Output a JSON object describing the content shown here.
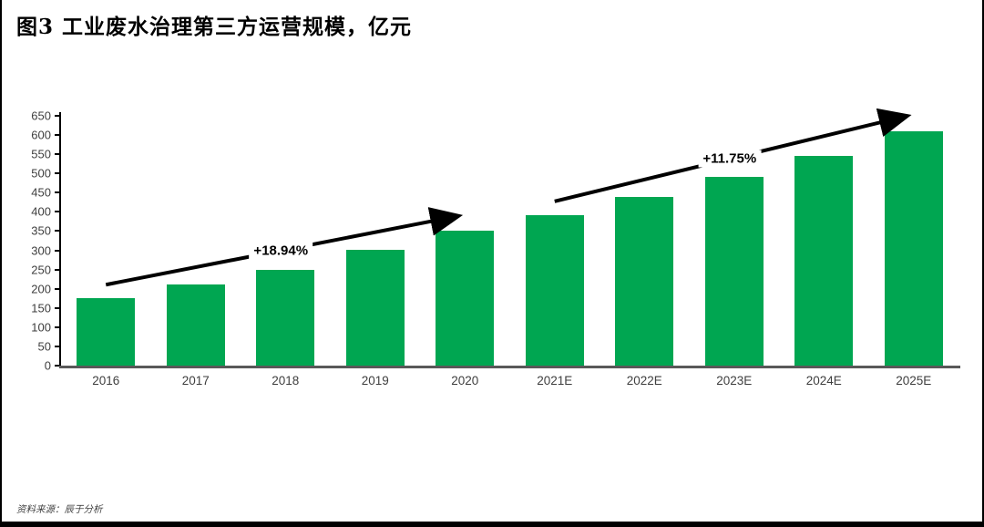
{
  "title": "图3 工业废水治理第三方运营规模，亿元",
  "source": "资料来源：辰于分析",
  "chart_data": {
    "type": "bar",
    "title": "图3 工业废水治理第三方运营规模，亿元",
    "categories": [
      "2016",
      "2017",
      "2018",
      "2019",
      "2020",
      "2021E",
      "2022E",
      "2023E",
      "2024E",
      "2025E"
    ],
    "values": [
      175,
      210,
      248,
      302,
      350,
      392,
      438,
      490,
      546,
      610
    ],
    "xlabel": "",
    "ylabel": "",
    "unit": "亿元",
    "ylim": [
      0,
      650
    ],
    "ytick_step": 50,
    "grid": false,
    "legend_position": "none",
    "bar_color": "#00A651",
    "axis_color": "#000000",
    "baseline_color": "#595959",
    "annotations": [
      {
        "label": "+18.94%",
        "from_category": "2016",
        "to_category": "2020",
        "from_index": 0,
        "to_index": 4
      },
      {
        "label": "+11.75%",
        "from_category": "2021E",
        "to_category": "2025E",
        "from_index": 5,
        "to_index": 9
      }
    ]
  }
}
